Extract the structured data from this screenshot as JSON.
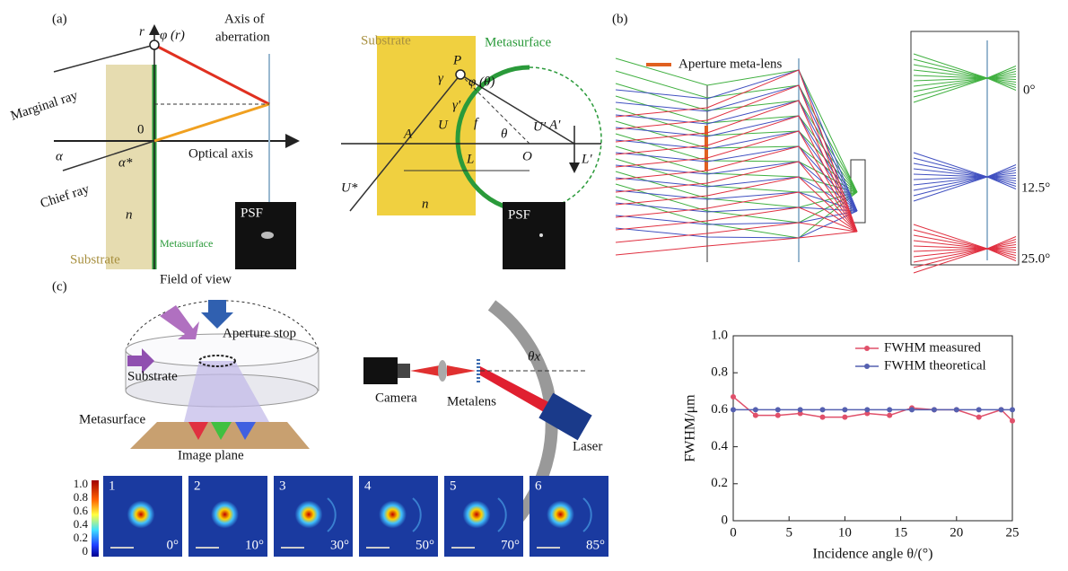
{
  "panel_a": {
    "label": "(a)",
    "r_axis": "r",
    "phi_r": "φ (r)",
    "axis_of_aberration": [
      "Axis of",
      "aberration"
    ],
    "marginal_ray": "Marginal ray",
    "origin": "0",
    "optical_axis": "Optical axis",
    "alpha": "α",
    "alpha_star": "α*",
    "chief_ray": "Chief ray",
    "n": "n",
    "substrate": "Substrate",
    "metasurface": "Metasurface",
    "psf": "PSF"
  },
  "panel_a_right": {
    "substrate": "Substrate",
    "metasurface": "Metasurface",
    "p": "P",
    "gamma": "γ",
    "phi_theta": "φ (θ)",
    "gamma_prime": "γ′",
    "u": "U",
    "f": "f",
    "theta": "θ",
    "u_prime": "U′",
    "a_prime": "A′",
    "a": "A",
    "o": "O",
    "l": "L",
    "l_prime": "L′",
    "u_star": "U*",
    "n": "n",
    "psf": "PSF"
  },
  "panel_b": {
    "label": "(b)",
    "legend": "Aperture meta-lens",
    "angles": [
      "0°",
      "12.5°",
      "25.0°"
    ]
  },
  "panel_c": {
    "label": "(c)",
    "field_of_view": "Field of view",
    "aperture_stop": "Aperture stop",
    "substrate": "Substrate",
    "metasurface": "Metasurface",
    "image_plane": "Image plane",
    "camera": "Camera",
    "metalens": "Metalens",
    "theta_x": "θx",
    "laser": "Laser",
    "colorbar_ticks": [
      "1.0",
      "0.8",
      "0.6",
      "0.4",
      "0.2",
      "0"
    ],
    "images": [
      {
        "index": "1",
        "angle": "0°"
      },
      {
        "index": "2",
        "angle": "10°"
      },
      {
        "index": "3",
        "angle": "30°"
      },
      {
        "index": "4",
        "angle": "50°"
      },
      {
        "index": "5",
        "angle": "70°"
      },
      {
        "index": "6",
        "angle": "85°"
      }
    ]
  },
  "chart_data": {
    "type": "line",
    "x_label": "Incidence angle θ/(°)",
    "y_label": "FWHM/μm",
    "xlim": [
      0,
      25
    ],
    "xticks": [
      0,
      5,
      10,
      15,
      20,
      25
    ],
    "ylim": [
      0,
      1
    ],
    "yticks": [
      0,
      0.2,
      0.4,
      0.6,
      0.8,
      {
        "value": 1,
        "label": "1.0"
      }
    ],
    "legend": "upper right",
    "series": [
      {
        "name": "FWHM measured",
        "color": "#e0506a",
        "x": [
          0,
          2,
          4,
          6,
          8,
          10,
          12,
          14,
          16,
          18,
          20,
          22,
          24,
          25
        ],
        "values": [
          0.67,
          0.57,
          0.57,
          0.58,
          0.56,
          0.56,
          0.58,
          0.57,
          0.61,
          0.6,
          0.6,
          0.56,
          0.6,
          0.54
        ]
      },
      {
        "name": "FWHM theoretical",
        "color": "#5560b0",
        "x": [
          0,
          2,
          4,
          6,
          8,
          10,
          12,
          14,
          16,
          18,
          20,
          22,
          24,
          25
        ],
        "values": [
          0.6,
          0.6,
          0.6,
          0.6,
          0.6,
          0.6,
          0.6,
          0.6,
          0.6,
          0.6,
          0.6,
          0.6,
          0.6,
          0.6
        ]
      }
    ]
  }
}
